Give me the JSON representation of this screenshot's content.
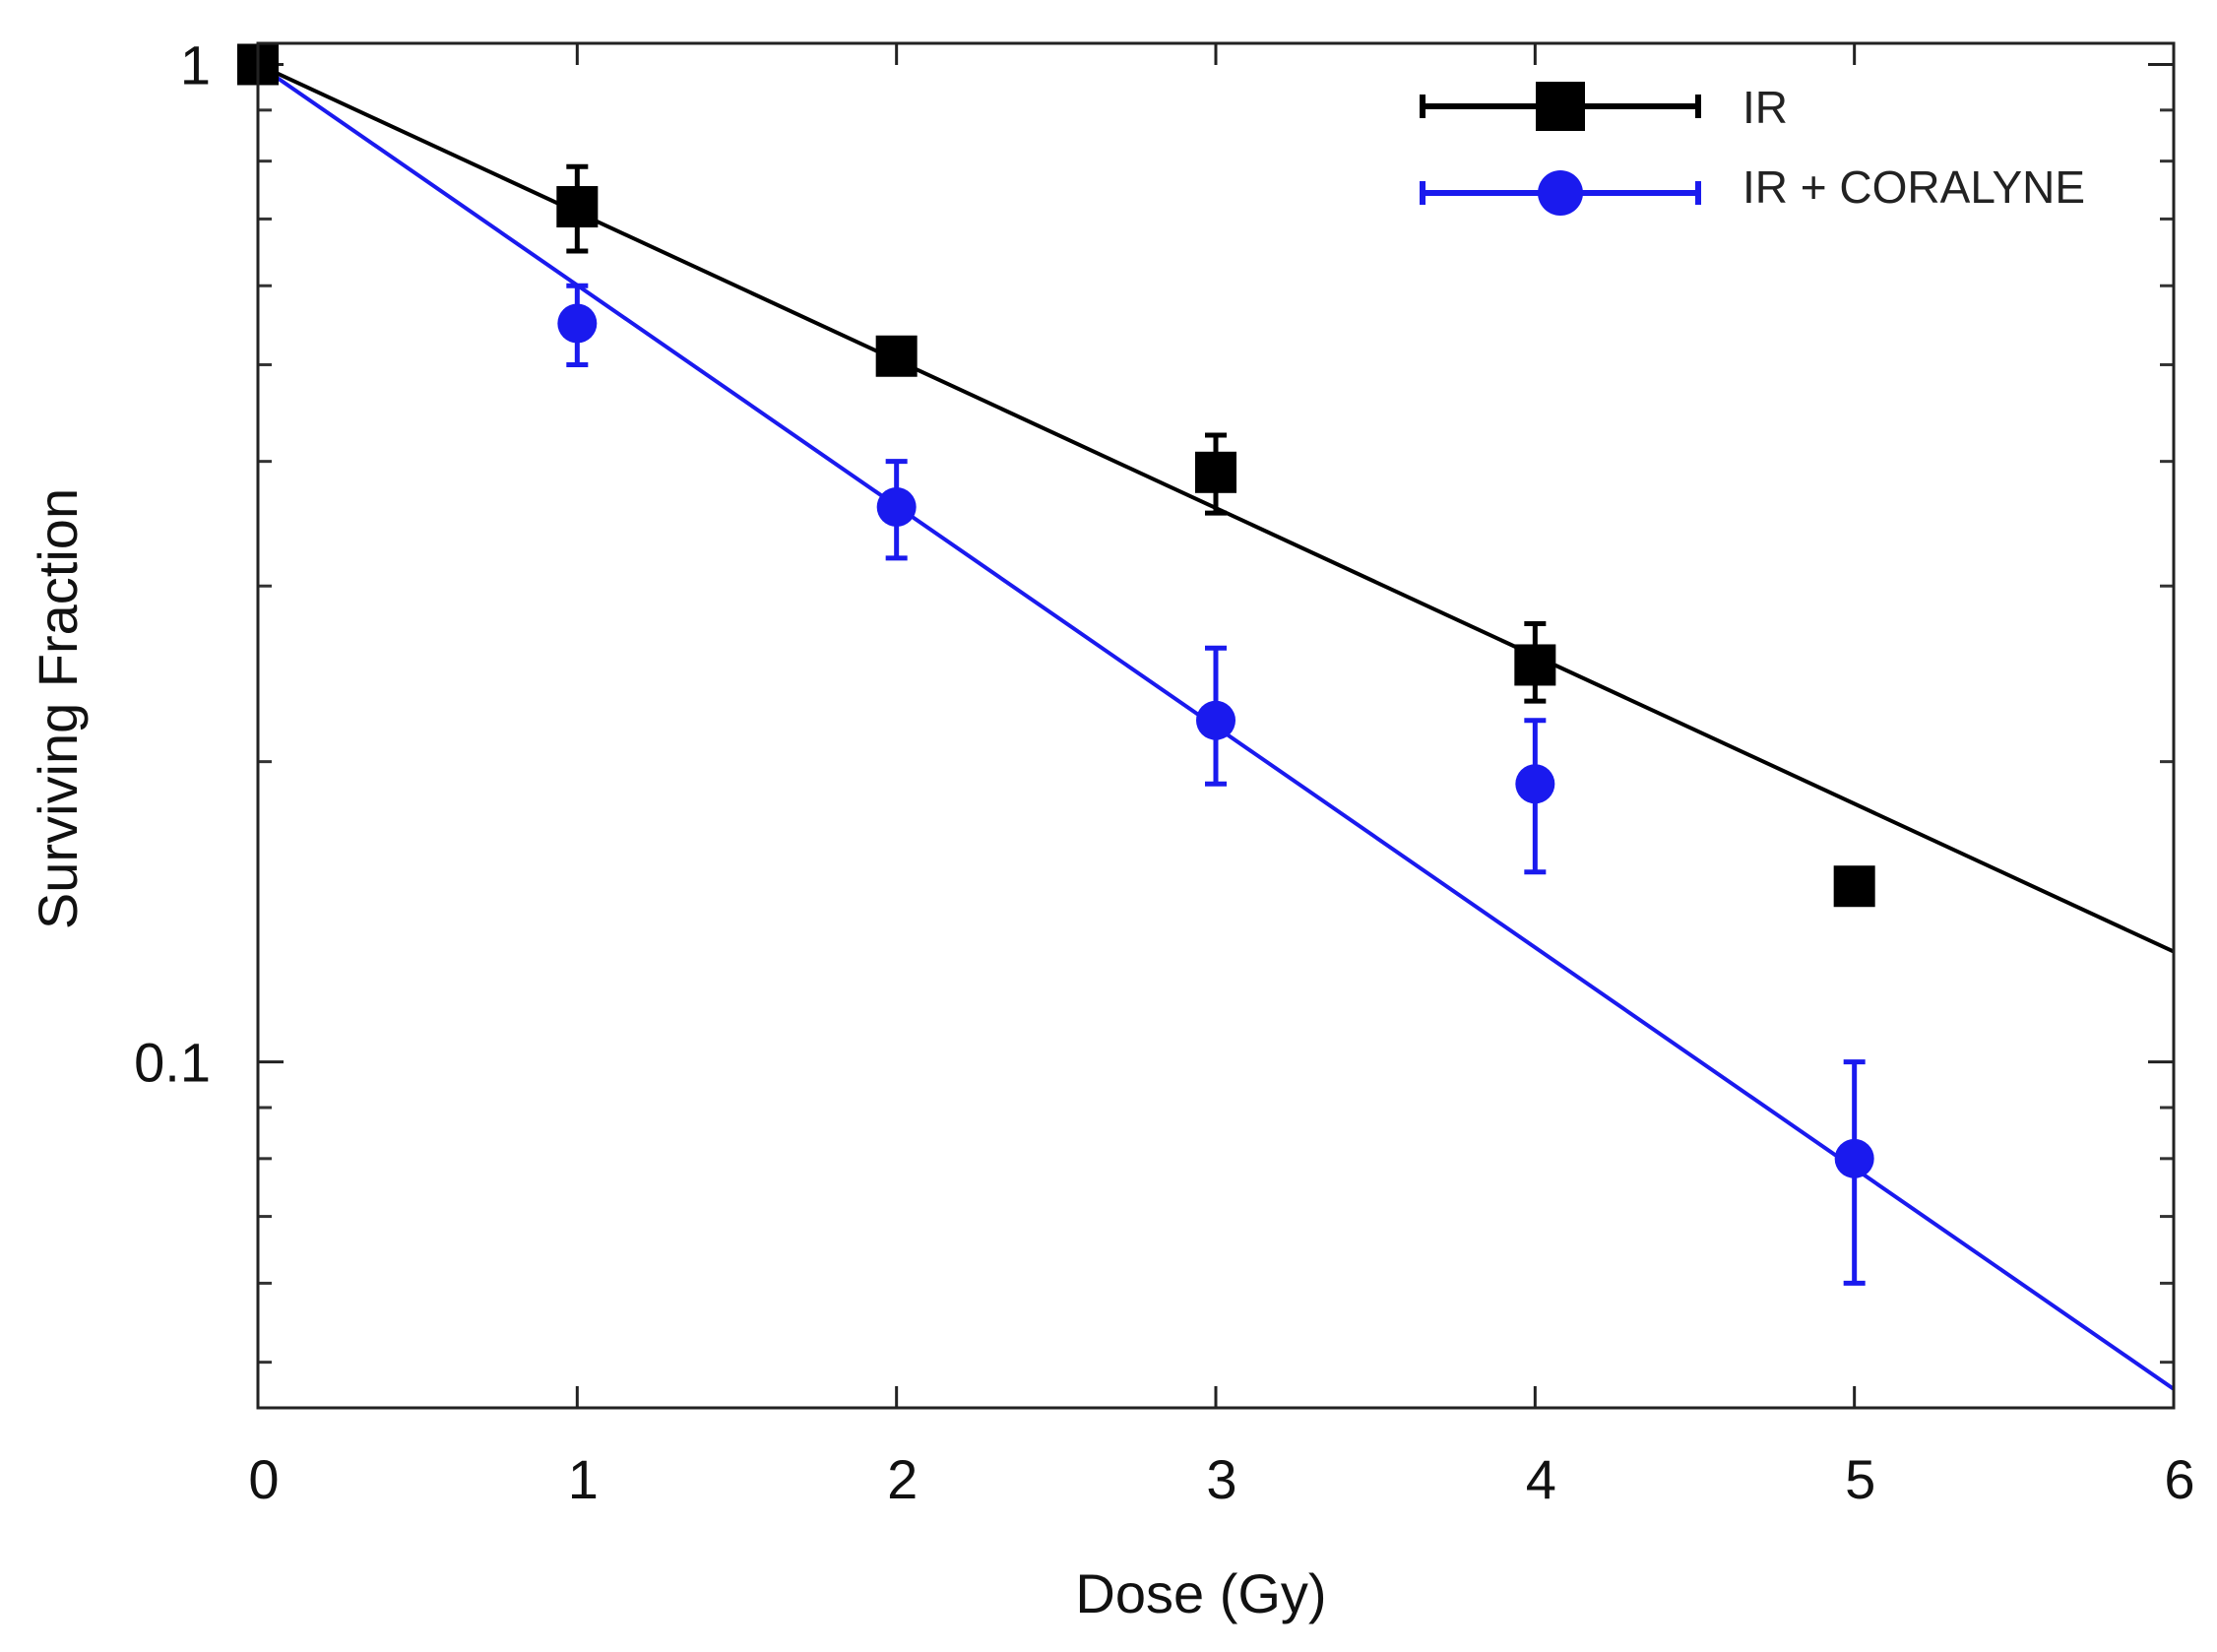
{
  "chart_data": {
    "type": "scatter",
    "title": "",
    "xlabel": "Dose (Gy)",
    "ylabel": "Surviving Fraction",
    "xlim": [
      0,
      6
    ],
    "ylim": [
      0.045,
      1.05
    ],
    "yscale": "log",
    "grid": false,
    "legend_position": "top-right",
    "x_ticks": [
      0,
      1,
      2,
      3,
      4,
      5,
      6
    ],
    "x_tick_labels": [
      "0",
      "1",
      "2",
      "3",
      "4",
      "5",
      "6"
    ],
    "y_major_ticks": [
      0.1,
      1
    ],
    "y_tick_labels": [
      "0.1",
      "1"
    ],
    "y_minor_ticks": [
      0.05,
      0.06,
      0.07,
      0.08,
      0.09,
      0.2,
      0.3,
      0.4,
      0.5,
      0.6,
      0.7,
      0.8,
      0.9
    ],
    "series": [
      {
        "name": "IR",
        "color": "#000000",
        "marker": "square",
        "x": [
          0,
          1,
          2,
          3,
          4,
          5
        ],
        "y": [
          1.0,
          0.72,
          0.51,
          0.39,
          0.25,
          0.15
        ],
        "err_low": [
          1.0,
          0.65,
          0.51,
          0.355,
          0.23,
          0.15
        ],
        "err_high": [
          1.0,
          0.79,
          0.51,
          0.425,
          0.275,
          0.15
        ],
        "fit": {
          "x": [
            0,
            6
          ],
          "y": [
            1.0,
            0.129
          ]
        }
      },
      {
        "name": "IR + CORALYNE",
        "color": "#1a1aee",
        "marker": "circle",
        "x": [
          0,
          1,
          2,
          3,
          4,
          5
        ],
        "y": [
          1.0,
          0.55,
          0.36,
          0.22,
          0.19,
          0.08
        ],
        "err_low": [
          1.0,
          0.5,
          0.32,
          0.19,
          0.155,
          0.06
        ],
        "err_high": [
          1.0,
          0.6,
          0.4,
          0.26,
          0.22,
          0.1
        ],
        "fit": {
          "x": [
            0,
            6
          ],
          "y": [
            1.0,
            0.047
          ]
        }
      }
    ]
  }
}
